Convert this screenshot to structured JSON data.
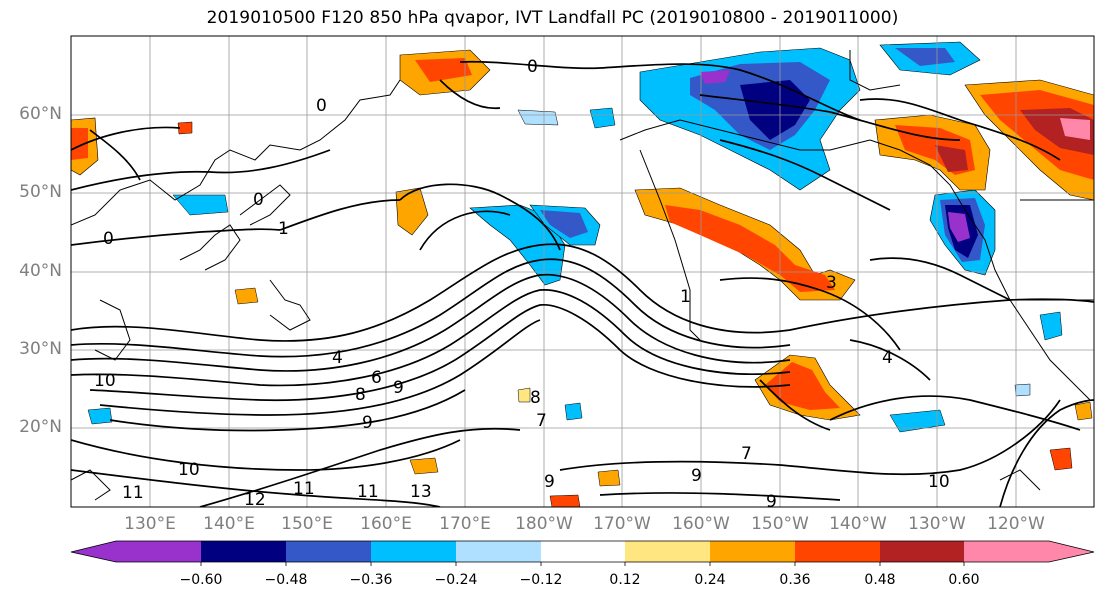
{
  "title": "2019010500 F120 850 hPa qvapor, IVT Landfall PC (2019010800 - 2019011000)",
  "lat_labels": [
    "60°N",
    "50°N",
    "40°N",
    "30°N",
    "20°N"
  ],
  "lon_labels": [
    "130°E",
    "140°E",
    "150°E",
    "160°E",
    "170°E",
    "180°W",
    "170°W",
    "160°W",
    "150°W",
    "140°W",
    "130°W",
    "120°W"
  ],
  "colorbar": {
    "ticks": [
      "−0.60",
      "−0.48",
      "−0.36",
      "−0.24",
      "−0.12",
      "0.12",
      "0.24",
      "0.36",
      "0.48",
      "0.60"
    ],
    "colors": [
      "#9932cc",
      "#000080",
      "#3458c8",
      "#00bfff",
      "#b0e0ff",
      "#ffffff",
      "#ffe680",
      "#ffa500",
      "#ff4500",
      "#b22222",
      "#ff88aa"
    ]
  },
  "contour_labels": [
    "0",
    "0",
    "0",
    "0",
    "1",
    "1",
    "3",
    "4",
    "4",
    "6",
    "7",
    "7",
    "8",
    "8",
    "9",
    "9",
    "9",
    "9",
    "9",
    "10",
    "10",
    "10",
    "11",
    "11",
    "11",
    "12",
    "13"
  ],
  "shading_colors": {
    "neg_strong": "#9932cc",
    "neg_navy": "#000080",
    "neg_blue": "#3458c8",
    "neg_cyan": "#00bfff",
    "neg_light": "#b0e0ff",
    "pos_yellow": "#ffe680",
    "pos_orange": "#ffa500",
    "pos_red": "#ff4500",
    "pos_darkred": "#b22222",
    "pos_pink": "#ff88aa"
  }
}
